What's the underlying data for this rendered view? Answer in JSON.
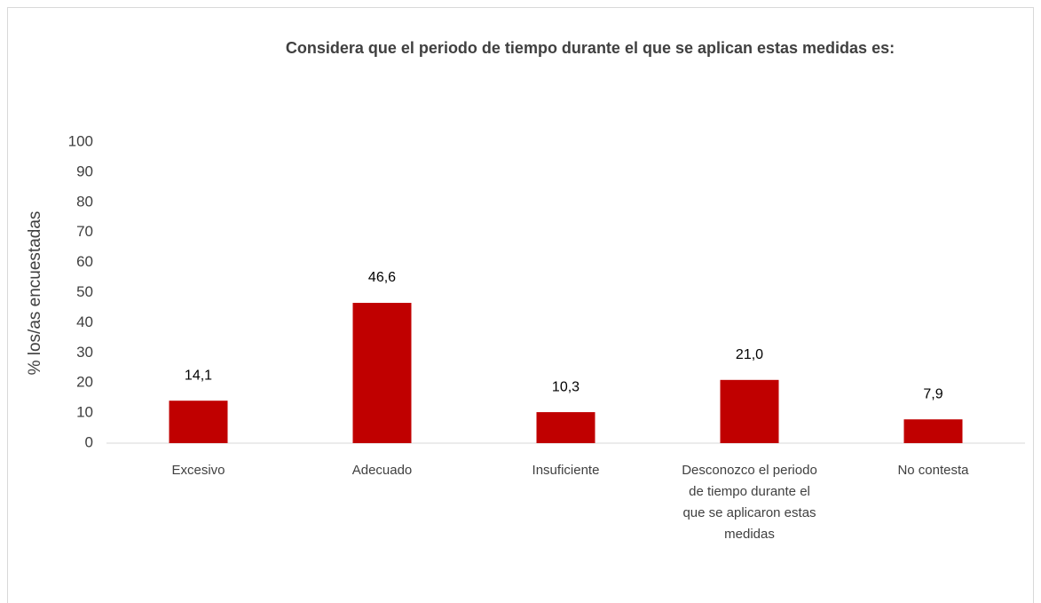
{
  "chart_data": {
    "type": "bar",
    "title": "Considera que el periodo de tiempo durante el que se aplican estas medidas es:",
    "y_label": "% los/as encuestadas",
    "categories": [
      "Excesivo",
      "Adecuado",
      "Insuficiente",
      "Desconozco el periodo de tiempo durante el que se aplicaron estas medidas",
      "No contesta"
    ],
    "values": [
      14.1,
      46.6,
      10.3,
      21.0,
      7.9
    ],
    "value_labels": [
      "14,1",
      "46,6",
      "10,3",
      "21,0",
      "7,9"
    ],
    "color": "#c00000",
    "ylim": [
      0,
      100
    ],
    "yticks": [
      0,
      10,
      20,
      30,
      40,
      50,
      60,
      70,
      80,
      90,
      100
    ],
    "grid": false
  }
}
